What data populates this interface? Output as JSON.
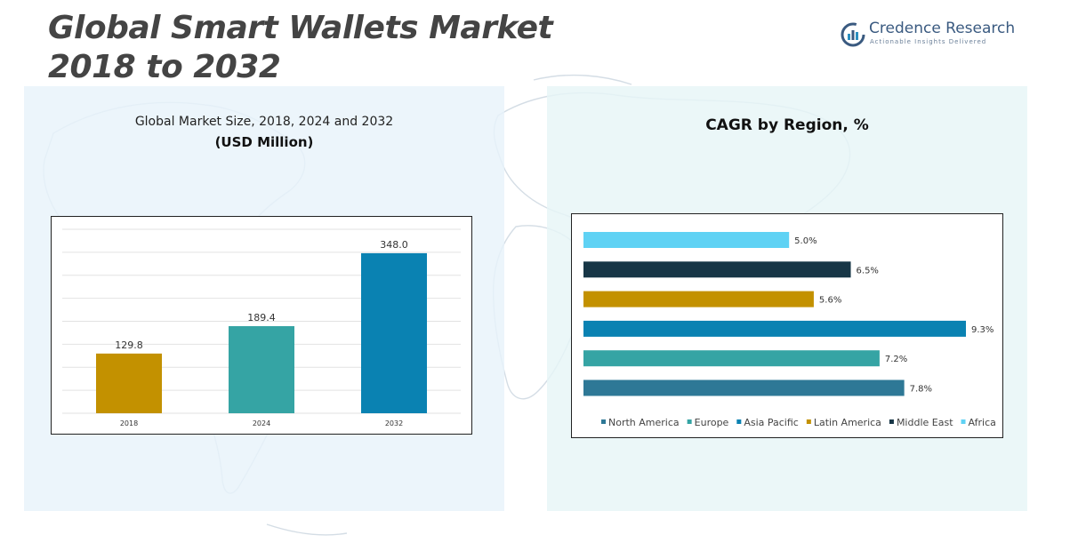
{
  "title": {
    "line1": "Global Smart Wallets Market",
    "line2": "2018 to 2032"
  },
  "logo": {
    "name": "Credence Research",
    "tagline": "Actionable Insights Delivered"
  },
  "colors": {
    "north_america": "#2e7896",
    "europe": "#35a4a4",
    "asia_pacific": "#0a82b2",
    "latin_america": "#c39100",
    "middle_east": "#173646",
    "africa": "#5fd2f4",
    "bar_2018": "#c39100",
    "bar_2024": "#35a4a4",
    "bar_2032": "#0a82b2"
  },
  "chart_data": [
    {
      "type": "bar",
      "title": "Global Market Size, 2018, 2024 and 2032",
      "subtitle": "(USD Million)",
      "categories": [
        "2018",
        "2024",
        "2032"
      ],
      "values": [
        129.8,
        189.4,
        348.0
      ],
      "value_labels": [
        "129.8",
        "189.4",
        "348.0"
      ],
      "ylim": [
        0,
        400
      ],
      "grid": true,
      "xlabel": "",
      "ylabel": ""
    },
    {
      "type": "bar",
      "orientation": "horizontal",
      "title": "CAGR by Region, %",
      "categories": [
        "Africa",
        "Middle East",
        "Latin America",
        "Asia Pacific",
        "Europe",
        "North America"
      ],
      "values": [
        5.0,
        6.5,
        5.6,
        9.3,
        7.2,
        7.8
      ],
      "value_labels": [
        "5.0%",
        "6.5%",
        "5.6%",
        "9.3%",
        "7.2%",
        "7.8%"
      ],
      "xlim": [
        0,
        9.3
      ],
      "legend": {
        "position": "bottom",
        "entries": [
          "North America",
          "Europe",
          "Asia Pacific",
          "Latin America",
          "Middle East",
          "Africa"
        ]
      }
    }
  ]
}
